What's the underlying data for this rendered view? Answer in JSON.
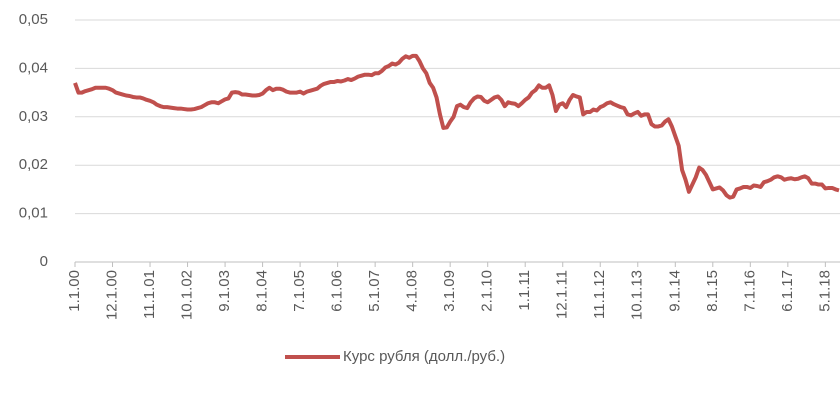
{
  "chart_data": {
    "type": "line",
    "categories": [
      "1.1.00",
      null,
      null,
      null,
      null,
      null,
      null,
      null,
      null,
      null,
      null,
      "12.1.00",
      null,
      null,
      null,
      null,
      null,
      null,
      null,
      null,
      null,
      null,
      "11.1.01",
      null,
      null,
      null,
      null,
      null,
      null,
      null,
      null,
      null,
      null,
      "10.1.02",
      null,
      null,
      null,
      null,
      null,
      null,
      null,
      null,
      null,
      null,
      "9.1.03",
      null,
      null,
      null,
      null,
      null,
      null,
      null,
      null,
      null,
      null,
      "8.1.04",
      null,
      null,
      null,
      null,
      null,
      null,
      null,
      null,
      null,
      null,
      "7.1.05",
      null,
      null,
      null,
      null,
      null,
      null,
      null,
      null,
      null,
      null,
      "6.1.06",
      null,
      null,
      null,
      null,
      null,
      null,
      null,
      null,
      null,
      null,
      "5.1.07",
      null,
      null,
      null,
      null,
      null,
      null,
      null,
      null,
      null,
      null,
      "4.1.08",
      null,
      null,
      null,
      null,
      null,
      null,
      null,
      null,
      null,
      null,
      "3.1.09",
      null,
      null,
      null,
      null,
      null,
      null,
      null,
      null,
      null,
      null,
      "2.1.10",
      null,
      null,
      null,
      null,
      null,
      null,
      null,
      null,
      null,
      null,
      "1.1.11",
      null,
      null,
      null,
      null,
      null,
      null,
      null,
      null,
      null,
      null,
      "12.1.11",
      null,
      null,
      null,
      null,
      null,
      null,
      null,
      null,
      null,
      null,
      "11.1.12",
      null,
      null,
      null,
      null,
      null,
      null,
      null,
      null,
      null,
      null,
      "10.1.13",
      null,
      null,
      null,
      null,
      null,
      null,
      null,
      null,
      null,
      null,
      "9.1.14",
      null,
      null,
      null,
      null,
      null,
      null,
      null,
      null,
      null,
      null,
      "8.1.15",
      null,
      null,
      null,
      null,
      null,
      null,
      null,
      null,
      null,
      null,
      "7.1.16",
      null,
      null,
      null,
      null,
      null,
      null,
      null,
      null,
      null,
      null,
      "6.1.17",
      null,
      null,
      null,
      null,
      null,
      null,
      null,
      null,
      null,
      null,
      "5.1.18",
      null,
      null,
      null,
      null
    ],
    "series": [
      {
        "name": "Курс рубля (долл./руб.)",
        "color": "#c0504d",
        "values": [
          0.037,
          0.035,
          0.035,
          0.0353,
          0.0355,
          0.0357,
          0.036,
          0.036,
          0.036,
          0.036,
          0.0358,
          0.0355,
          0.035,
          0.0348,
          0.0346,
          0.0344,
          0.0343,
          0.0341,
          0.034,
          0.034,
          0.0338,
          0.0335,
          0.0333,
          0.033,
          0.0325,
          0.0322,
          0.032,
          0.032,
          0.0319,
          0.0318,
          0.0317,
          0.0317,
          0.0316,
          0.0315,
          0.0315,
          0.0316,
          0.0318,
          0.032,
          0.0324,
          0.0328,
          0.033,
          0.033,
          0.0328,
          0.0332,
          0.0336,
          0.0338,
          0.035,
          0.0351,
          0.035,
          0.0346,
          0.0346,
          0.0345,
          0.0344,
          0.0344,
          0.0345,
          0.0348,
          0.0355,
          0.036,
          0.0355,
          0.0358,
          0.0358,
          0.0356,
          0.0352,
          0.035,
          0.035,
          0.035,
          0.0352,
          0.0348,
          0.0352,
          0.0354,
          0.0356,
          0.0358,
          0.0364,
          0.0368,
          0.037,
          0.0372,
          0.0372,
          0.0374,
          0.0373,
          0.0375,
          0.0378,
          0.0376,
          0.0379,
          0.0383,
          0.0385,
          0.0387,
          0.0387,
          0.0386,
          0.039,
          0.039,
          0.0395,
          0.0402,
          0.0405,
          0.041,
          0.0408,
          0.0412,
          0.042,
          0.0425,
          0.0422,
          0.0426,
          0.0426,
          0.0415,
          0.04,
          0.039,
          0.037,
          0.036,
          0.034,
          0.0305,
          0.0277,
          0.0278,
          0.029,
          0.03,
          0.0322,
          0.0325,
          0.032,
          0.0318,
          0.033,
          0.0338,
          0.0342,
          0.0341,
          0.0333,
          0.033,
          0.0335,
          0.034,
          0.0342,
          0.0335,
          0.0322,
          0.033,
          0.0328,
          0.0327,
          0.0322,
          0.0328,
          0.0335,
          0.034,
          0.035,
          0.0355,
          0.0365,
          0.036,
          0.036,
          0.0365,
          0.0345,
          0.0312,
          0.0325,
          0.0328,
          0.032,
          0.0335,
          0.0345,
          0.0342,
          0.034,
          0.0305,
          0.031,
          0.031,
          0.0315,
          0.0313,
          0.032,
          0.0323,
          0.0328,
          0.033,
          0.0326,
          0.0323,
          0.032,
          0.0318,
          0.0305,
          0.0303,
          0.0307,
          0.031,
          0.0302,
          0.0305,
          0.0305,
          0.0285,
          0.028,
          0.028,
          0.0282,
          0.029,
          0.0295,
          0.028,
          0.026,
          0.024,
          0.019,
          0.017,
          0.0145,
          0.016,
          0.0175,
          0.0195,
          0.019,
          0.018,
          0.0165,
          0.015,
          0.0152,
          0.0154,
          0.0148,
          0.0138,
          0.0133,
          0.0135,
          0.015,
          0.0152,
          0.0155,
          0.0155,
          0.0153,
          0.0158,
          0.0157,
          0.0155,
          0.0165,
          0.0167,
          0.017,
          0.0175,
          0.0177,
          0.0175,
          0.017,
          0.0172,
          0.0173,
          0.0171,
          0.0172,
          0.0175,
          0.0177,
          0.0173,
          0.0162,
          0.0162,
          0.016,
          0.016,
          0.0152,
          0.0153,
          0.0153,
          0.015,
          0.0148
        ]
      }
    ],
    "ylim": [
      0,
      0.05
    ],
    "yticks": [
      0,
      {
        "value": 0.01,
        "label": "0,01"
      },
      {
        "value": 0.02,
        "label": "0,02"
      },
      {
        "value": 0.03,
        "label": "0,03"
      },
      {
        "value": 0.04,
        "label": "0,04"
      },
      {
        "value": 0.05,
        "label": "0,05"
      }
    ],
    "grid": true,
    "legend": "bottom"
  }
}
